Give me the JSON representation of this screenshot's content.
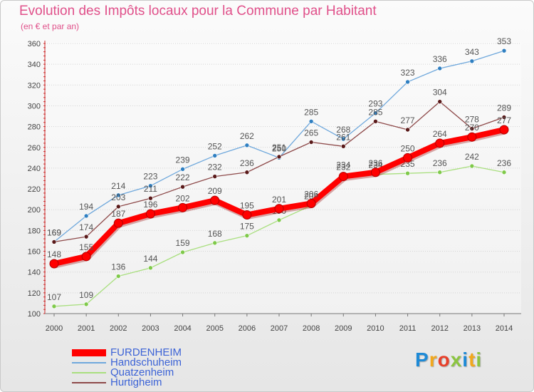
{
  "title": "Evolution des Impôts locaux pour la Commune par Habitant",
  "subtitle": "(en € et par an)",
  "logo": {
    "text": "Proxiti",
    "letters": [
      "P",
      "r",
      "o",
      "x",
      "i",
      "t",
      "i"
    ],
    "colors": [
      "#1e8ad6",
      "#f2a81d",
      "#e8402a",
      "#8bc53f",
      "#1e8ad6",
      "#f2a81d",
      "#8bc53f"
    ]
  },
  "chart_data": {
    "type": "line",
    "title": "Evolution des Impôts locaux pour la Commune par Habitant",
    "ylabel": "(en € et par an)",
    "xlabel": "",
    "categories": [
      "2000",
      "2001",
      "2002",
      "2003",
      "2004",
      "2005",
      "2006",
      "2007",
      "2008",
      "2009",
      "2010",
      "2011",
      "2012",
      "2013",
      "2014"
    ],
    "ylim": [
      100,
      360
    ],
    "yticks": [
      "100",
      "120",
      "140",
      "160",
      "180",
      "200",
      "220",
      "240",
      "260",
      "280",
      "300",
      "320",
      "340",
      "360"
    ],
    "grid": true,
    "legend": "bottom-left",
    "series": [
      {
        "name": "Handschuheim",
        "color": "#6fa8dc",
        "marker": "#2f7fc1",
        "values": [
          169,
          194,
          214,
          223,
          239,
          252,
          262,
          250,
          285,
          268,
          293,
          323,
          336,
          343,
          353
        ],
        "labels": [
          "169",
          "194",
          "214",
          "223",
          "239",
          "252",
          "262",
          "250",
          "285",
          "268",
          "293",
          "323",
          "336",
          "343",
          "353"
        ]
      },
      {
        "name": "Hurtigheim",
        "color": "#8e4a4a",
        "marker": "#5a1a1a",
        "values": [
          169,
          174,
          203,
          211,
          222,
          232,
          236,
          251,
          265,
          261,
          285,
          277,
          304,
          278,
          289
        ],
        "labels": [
          "169",
          "174",
          "203",
          "211",
          "222",
          "232",
          "236",
          "251",
          "265",
          "261",
          "285",
          "277",
          "304",
          "278",
          "289"
        ]
      },
      {
        "name": "Quatzenheim",
        "color": "#a9df7f",
        "marker": "#7fc94a",
        "values": [
          107,
          109,
          136,
          144,
          159,
          168,
          175,
          190,
          204,
          234,
          234,
          235,
          236,
          242,
          236
        ],
        "labels": [
          "107",
          "109",
          "136",
          "144",
          "159",
          "168",
          "175",
          "190",
          "204",
          "234",
          "234",
          "235",
          "236",
          "242",
          "236"
        ]
      },
      {
        "name": "FURDENHEIM",
        "color": "#ff0000",
        "marker": "#ff0000",
        "values": [
          148,
          155,
          187,
          196,
          202,
          209,
          195,
          201,
          206,
          232,
          236,
          250,
          264,
          270,
          277
        ],
        "labels": [
          "148",
          "155",
          "187",
          "196",
          "202",
          "209",
          "195",
          "201",
          "206",
          "232",
          "236",
          "250",
          "264",
          "270",
          "277"
        ]
      }
    ]
  },
  "legend": [
    {
      "name": "FURDENHEIM",
      "color": "#ff0000",
      "width": 10
    },
    {
      "name": "Handschuheim",
      "color": "#6fa8dc",
      "width": 2
    },
    {
      "name": "Quatzenheim",
      "color": "#a9df7f",
      "width": 2
    },
    {
      "name": "Hurtigheim",
      "color": "#8e4a4a",
      "width": 2
    }
  ]
}
